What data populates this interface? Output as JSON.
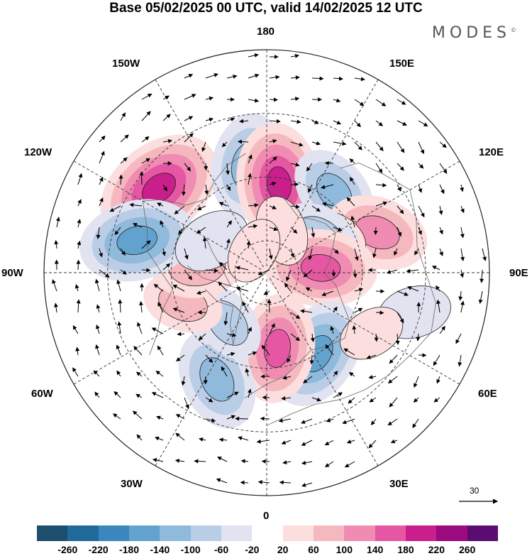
{
  "title": "Base 05/02/2025 00 UTC, valid 14/02/2025 12 UTC",
  "brand": {
    "name": "MODES",
    "mark": "©"
  },
  "longitude_labels": {
    "n180": "180",
    "w150": "150W",
    "e150": "150E",
    "w120": "120W",
    "e120": "120E",
    "w90": "90W",
    "e90": "90E",
    "w60": "60W",
    "e60": "60E",
    "w30": "30W",
    "e30": "30E",
    "n0": "0"
  },
  "reference_vector": {
    "label": "30"
  },
  "colorbar": {
    "colors": [
      "#1d4e6e",
      "#1f6a9a",
      "#3a87bd",
      "#62a2cf",
      "#8fbadc",
      "#b9cde6",
      "#e1e3f1",
      "#ffffff",
      "#fbdedd",
      "#f6b8bf",
      "#f08cb1",
      "#e557a2",
      "#c91e8c",
      "#9c0a80",
      "#5b0c72"
    ],
    "ticks": [
      "-260",
      "-220",
      "-180",
      "-140",
      "-100",
      "-60",
      "-20",
      "20",
      "60",
      "100",
      "140",
      "180",
      "220",
      "260"
    ]
  },
  "anomalies": [
    {
      "lon": -128,
      "colat": 43,
      "value": 220
    },
    {
      "lon": -170,
      "colat": 34,
      "value": -150
    },
    {
      "lon": 172,
      "colat": 28,
      "value": 200
    },
    {
      "lon": 140,
      "colat": 33,
      "value": -120
    },
    {
      "lon": 110,
      "colat": 37,
      "value": 140
    },
    {
      "lon": 118,
      "colat": 24,
      "value": 40
    },
    {
      "lon": 123,
      "colat": 20,
      "value": -100
    },
    {
      "lon": 95,
      "colat": 17,
      "value": 170
    },
    {
      "lon": 75,
      "colat": 48,
      "value": -60
    },
    {
      "lon": 32,
      "colat": 30,
      "value": -170
    },
    {
      "lon": 8,
      "colat": 24,
      "value": 160
    },
    {
      "lon": -25,
      "colat": 37,
      "value": -140
    },
    {
      "lon": -38,
      "colat": 20,
      "value": -80
    },
    {
      "lon": -70,
      "colat": 28,
      "value": 80
    },
    {
      "lon": -95,
      "colat": 22,
      "value": 110
    },
    {
      "lon": -104,
      "colat": 42,
      "value": -180
    },
    {
      "lon": -120,
      "colat": 20,
      "value": -70
    },
    {
      "lon": 160,
      "colat": 14,
      "value": 50
    },
    {
      "lon": 60,
      "colat": 38,
      "value": 40
    },
    {
      "lon": -150,
      "colat": 8,
      "value": 40
    }
  ]
}
